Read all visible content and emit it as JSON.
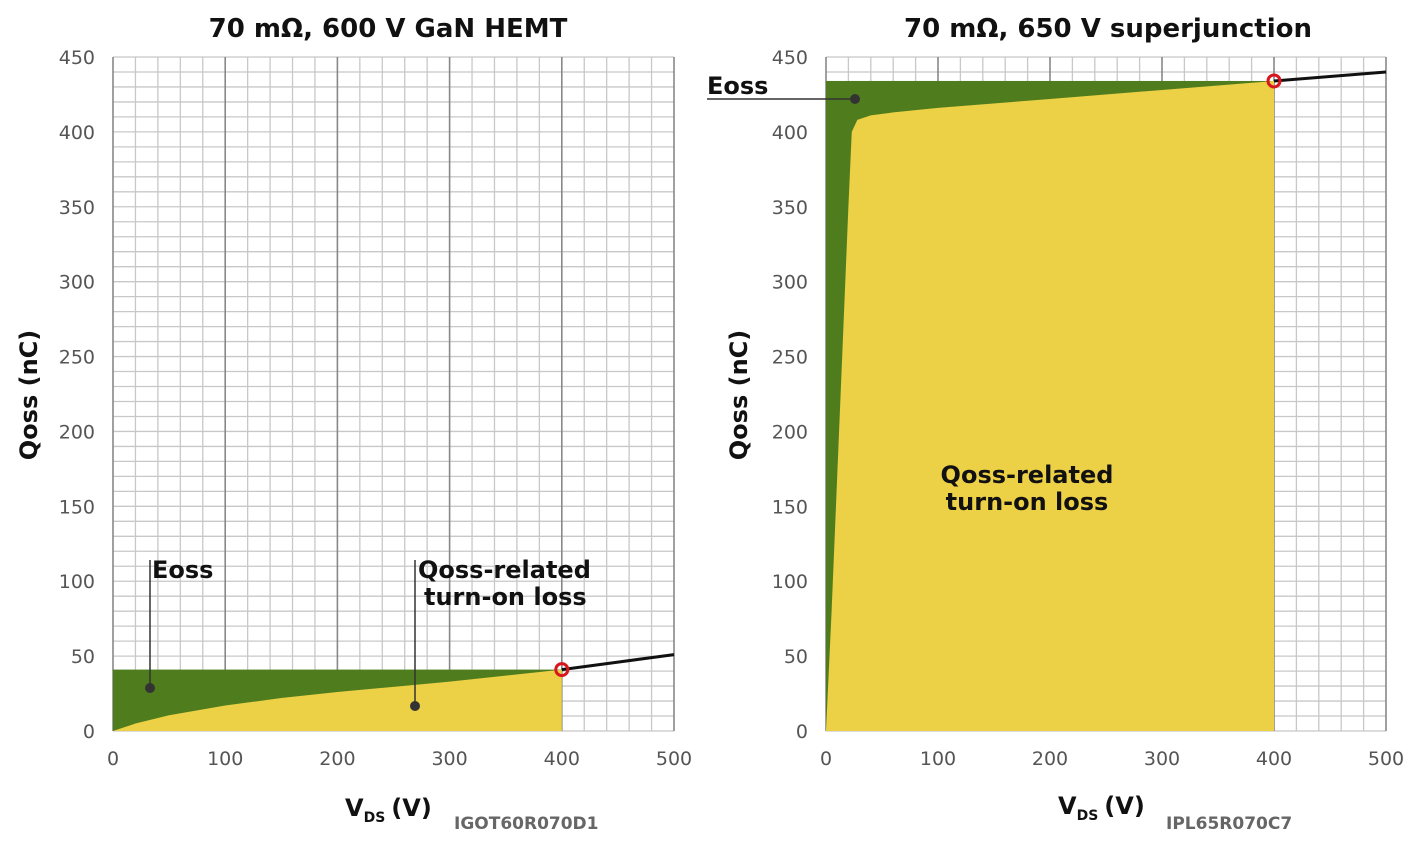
{
  "chart_data": [
    {
      "type": "area",
      "title": "70 mΩ, 600 V GaN HEMT",
      "xlabel": "V_DS (V)",
      "xlabel_main": "V",
      "xlabel_sub": "DS",
      "xlabel_unit": "(V)",
      "ylabel": "Qoss (nC)",
      "part_number": "IGOT60R070D1",
      "xlim": [
        0,
        500
      ],
      "ylim": [
        0,
        450
      ],
      "xticks": [
        0,
        100,
        200,
        300,
        400,
        500
      ],
      "yticks": [
        0,
        50,
        100,
        150,
        200,
        250,
        300,
        350,
        400,
        450
      ],
      "grid": true,
      "operating_point": {
        "x": 400,
        "y": 41
      },
      "qoss_curve": {
        "x": [
          0,
          10,
          20,
          50,
          100,
          150,
          200,
          250,
          300,
          350,
          400,
          450,
          500
        ],
        "y": [
          0,
          2.5,
          5,
          10.5,
          17,
          22,
          26,
          29.5,
          33,
          37,
          41,
          46,
          51
        ]
      },
      "annotations": [
        {
          "label": "Eoss",
          "region": "green"
        },
        {
          "label_line1": "Qoss-related",
          "label_line2": "turn-on loss",
          "region": "yellow"
        }
      ]
    },
    {
      "type": "area",
      "title": "70 mΩ, 650 V superjunction",
      "xlabel": "V_DS (V)",
      "xlabel_main": "V",
      "xlabel_sub": "DS",
      "xlabel_unit": "(V)",
      "ylabel": "Qoss (nC)",
      "part_number": "IPL65R070C7",
      "xlim": [
        0,
        500
      ],
      "ylim": [
        0,
        450
      ],
      "xticks": [
        0,
        100,
        200,
        300,
        400,
        500
      ],
      "yticks": [
        0,
        50,
        100,
        150,
        200,
        250,
        300,
        350,
        400,
        450
      ],
      "grid": true,
      "operating_point": {
        "x": 400,
        "y": 434
      },
      "qoss_curve": {
        "x": [
          0,
          5,
          10,
          15,
          20,
          23,
          28,
          40,
          60,
          100,
          200,
          300,
          400,
          450,
          500
        ],
        "y": [
          0,
          80,
          170,
          260,
          350,
          400,
          408,
          411,
          413,
          416,
          422,
          428,
          434,
          437,
          440
        ]
      },
      "annotations": [
        {
          "label": "Eoss",
          "region": "green"
        },
        {
          "label_line1": "Qoss-related",
          "label_line2": "turn-on loss",
          "region": "yellow"
        }
      ]
    }
  ],
  "colors": {
    "eoss_green": "#4f7d1e",
    "qoss_yellow": "#ecd046",
    "marker_red": "#d9161e",
    "curve": "#111111",
    "grid_minor": "#c8c8c8",
    "grid_major": "#888888"
  }
}
